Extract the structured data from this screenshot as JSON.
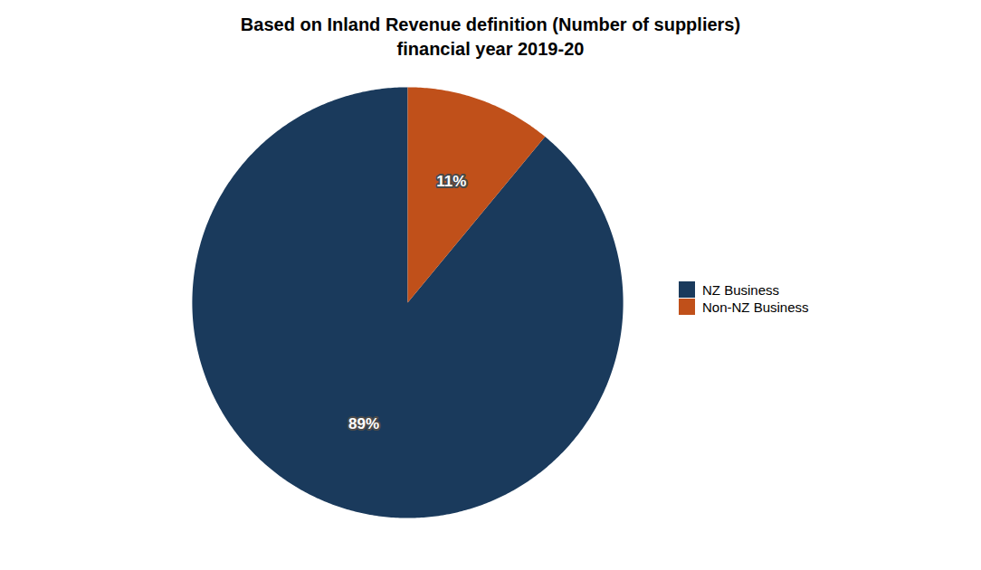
{
  "chart_data": {
    "type": "pie",
    "title": "Based on Inland Revenue definition (Number of suppliers)\nfinancial year 2019-20",
    "categories": [
      "NZ Business",
      "Non-NZ Business"
    ],
    "values": [
      89,
      11
    ],
    "value_labels": [
      "89%",
      "11%"
    ],
    "colors": [
      "#1a3a5c",
      "#c0501a"
    ],
    "data_labels": true,
    "legend": "right"
  }
}
